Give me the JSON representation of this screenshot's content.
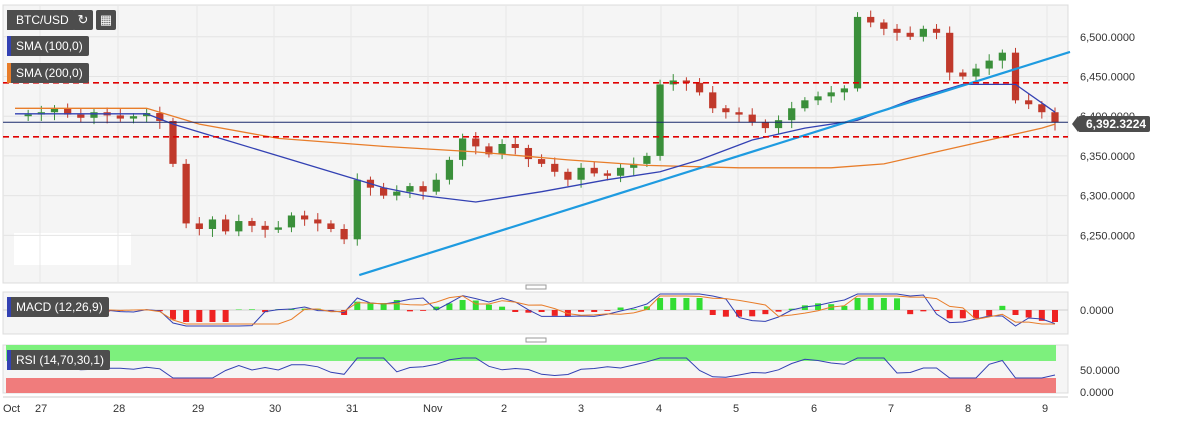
{
  "header": {
    "symbol": "BTC/USD",
    "sma100_label": "SMA (100,0)",
    "sma200_label": "SMA (200,0)",
    "current_price": "6,392.3224",
    "colors": {
      "sma100": "#3341b3",
      "sma200": "#e87d2a",
      "up": "#3a8f3a",
      "down": "#c0392b",
      "trendline": "#1e9be0",
      "resistance": "#e00000"
    }
  },
  "macd": {
    "label": "MACD (12,26,9)",
    "axis_label": "0.0000"
  },
  "rsi": {
    "label": "RSI (14,70,30,1)",
    "axis_labels": [
      "50.0000",
      "0.0000"
    ]
  },
  "chart_data": {
    "type": "candlestick",
    "x_tick_labels": [
      "Oct",
      "27",
      "28",
      "29",
      "30",
      "31",
      "Nov",
      "2",
      "3",
      "4",
      "5",
      "6",
      "7",
      "8",
      "9"
    ],
    "y_tick_labels": [
      "6,500.0000",
      "6,450.0000",
      "6,400.0000",
      "6,350.0000",
      "6,300.0000",
      "6,250.0000"
    ],
    "ylim": [
      6190,
      6540
    ],
    "price_path": [
      [
        0,
        6400
      ],
      [
        1,
        6402
      ],
      [
        2,
        6405
      ],
      [
        3,
        6410
      ],
      [
        4,
        6402
      ],
      [
        5,
        6398
      ],
      [
        6,
        6405
      ],
      [
        7,
        6401
      ],
      [
        8,
        6397
      ],
      [
        9,
        6400
      ],
      [
        10,
        6404
      ],
      [
        11,
        6394
      ],
      [
        12,
        6340
      ],
      [
        13,
        6265
      ],
      [
        14,
        6258
      ],
      [
        15,
        6270
      ],
      [
        16,
        6255
      ],
      [
        17,
        6268
      ],
      [
        18,
        6262
      ],
      [
        19,
        6257
      ],
      [
        20,
        6260
      ],
      [
        21,
        6275
      ],
      [
        22,
        6270
      ],
      [
        23,
        6265
      ],
      [
        24,
        6258
      ],
      [
        25,
        6245
      ],
      [
        26,
        6320
      ],
      [
        27,
        6310
      ],
      [
        28,
        6300
      ],
      [
        29,
        6305
      ],
      [
        30,
        6312
      ],
      [
        31,
        6305
      ],
      [
        32,
        6320
      ],
      [
        33,
        6345
      ],
      [
        34,
        6372
      ],
      [
        35,
        6362
      ],
      [
        36,
        6352
      ],
      [
        37,
        6365
      ],
      [
        38,
        6360
      ],
      [
        39,
        6346
      ],
      [
        40,
        6340
      ],
      [
        41,
        6330
      ],
      [
        42,
        6320
      ],
      [
        43,
        6335
      ],
      [
        44,
        6328
      ],
      [
        45,
        6325
      ],
      [
        46,
        6335
      ],
      [
        47,
        6340
      ],
      [
        48,
        6350
      ],
      [
        49,
        6440
      ],
      [
        50,
        6445
      ],
      [
        51,
        6442
      ],
      [
        52,
        6430
      ],
      [
        53,
        6410
      ],
      [
        54,
        6405
      ],
      [
        55,
        6402
      ],
      [
        56,
        6392
      ],
      [
        57,
        6385
      ],
      [
        58,
        6395
      ],
      [
        59,
        6410
      ],
      [
        60,
        6420
      ],
      [
        61,
        6425
      ],
      [
        62,
        6430
      ],
      [
        63,
        6435
      ],
      [
        64,
        6525
      ],
      [
        65,
        6518
      ],
      [
        66,
        6510
      ],
      [
        67,
        6505
      ],
      [
        68,
        6500
      ],
      [
        69,
        6510
      ],
      [
        70,
        6505
      ],
      [
        71,
        6455
      ],
      [
        72,
        6450
      ],
      [
        73,
        6460
      ],
      [
        74,
        6470
      ],
      [
        75,
        6480
      ],
      [
        76,
        6420
      ],
      [
        77,
        6415
      ],
      [
        78,
        6405
      ],
      [
        79,
        6392
      ]
    ],
    "sma100": [
      [
        0,
        6403
      ],
      [
        10,
        6403
      ],
      [
        12,
        6390
      ],
      [
        16,
        6370
      ],
      [
        20,
        6350
      ],
      [
        24,
        6330
      ],
      [
        28,
        6310
      ],
      [
        31,
        6300
      ],
      [
        35,
        6292
      ],
      [
        40,
        6305
      ],
      [
        45,
        6320
      ],
      [
        49,
        6330
      ],
      [
        52,
        6345
      ],
      [
        56,
        6370
      ],
      [
        60,
        6385
      ],
      [
        64,
        6395
      ],
      [
        68,
        6420
      ],
      [
        72,
        6440
      ],
      [
        76,
        6440
      ],
      [
        79,
        6405
      ]
    ],
    "sma200": [
      [
        0,
        6410
      ],
      [
        10,
        6410
      ],
      [
        14,
        6390
      ],
      [
        20,
        6372
      ],
      [
        28,
        6362
      ],
      [
        35,
        6355
      ],
      [
        42,
        6345
      ],
      [
        48,
        6338
      ],
      [
        55,
        6335
      ],
      [
        62,
        6335
      ],
      [
        66,
        6340
      ],
      [
        70,
        6355
      ],
      [
        74,
        6370
      ],
      [
        78,
        6385
      ],
      [
        79,
        6390
      ]
    ],
    "trendline": [
      [
        26,
        6200
      ],
      [
        79,
        6475
      ]
    ],
    "resistance_levels": [
      6442,
      6374
    ],
    "current_level": 6392.3224
  }
}
